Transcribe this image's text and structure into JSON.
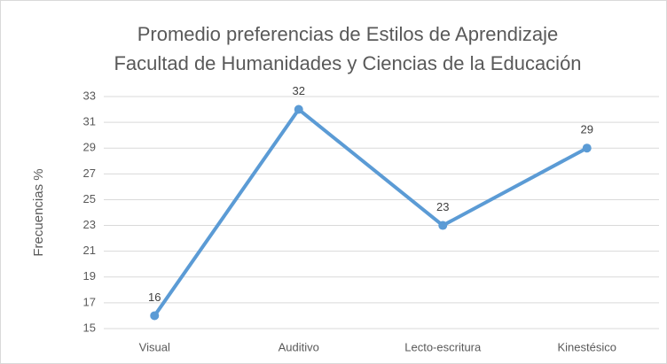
{
  "chart_data": {
    "type": "line",
    "title": [
      "Promedio preferencias de Estilos de Aprendizaje",
      "Facultad de Humanidades y Ciencias de la Educación"
    ],
    "y_label": "Frecuencias %",
    "categories": [
      "Visual",
      "Auditivo",
      "Lecto-escritura",
      "Kinestésico"
    ],
    "values": [
      16,
      32,
      23,
      29
    ],
    "color": "#5b9bd5",
    "ylim": [
      15,
      33
    ],
    "yticks": [
      15,
      17,
      19,
      21,
      23,
      25,
      27,
      29,
      31,
      33
    ],
    "grid": true,
    "data_labels": true
  }
}
